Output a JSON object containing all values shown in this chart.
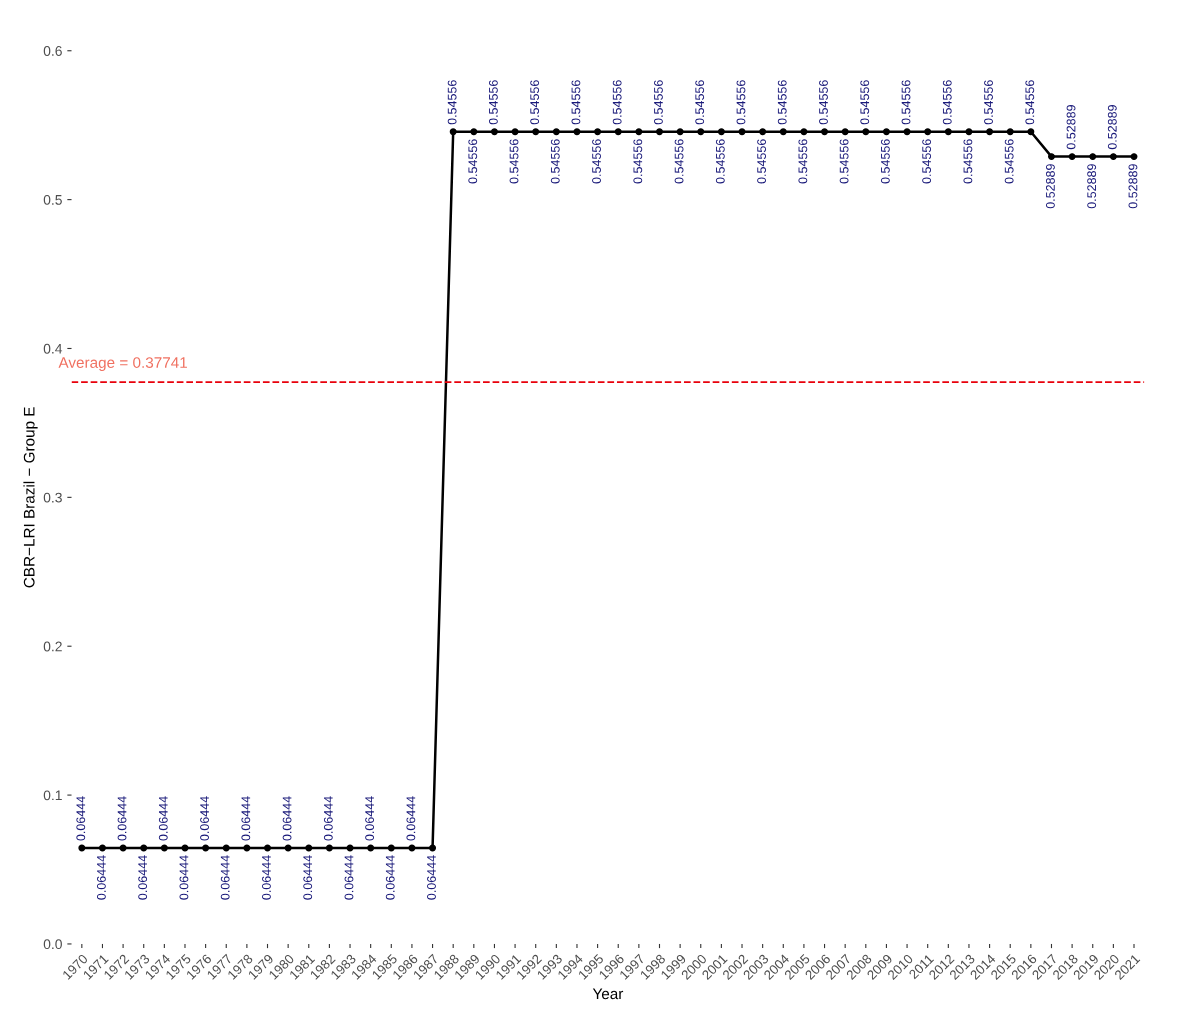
{
  "chart_data": {
    "type": "line",
    "xlabel": "Year",
    "ylabel": "CBR−LRI Brazil − Group E",
    "categories": [
      "1970",
      "1971",
      "1972",
      "1973",
      "1974",
      "1975",
      "1976",
      "1977",
      "1978",
      "1979",
      "1980",
      "1981",
      "1982",
      "1983",
      "1984",
      "1985",
      "1986",
      "1987",
      "1988",
      "1989",
      "1990",
      "1991",
      "1992",
      "1993",
      "1994",
      "1995",
      "1996",
      "1997",
      "1998",
      "1999",
      "2000",
      "2001",
      "2002",
      "2003",
      "2004",
      "2005",
      "2006",
      "2007",
      "2008",
      "2009",
      "2010",
      "2011",
      "2012",
      "2013",
      "2014",
      "2015",
      "2016",
      "2017",
      "2018",
      "2019",
      "2020",
      "2021"
    ],
    "series": [
      {
        "color": "#000000",
        "values": [
          0.06444,
          0.06444,
          0.06444,
          0.06444,
          0.06444,
          0.06444,
          0.06444,
          0.06444,
          0.06444,
          0.06444,
          0.06444,
          0.06444,
          0.06444,
          0.06444,
          0.06444,
          0.06444,
          0.06444,
          0.06444,
          0.54556,
          0.54556,
          0.54556,
          0.54556,
          0.54556,
          0.54556,
          0.54556,
          0.54556,
          0.54556,
          0.54556,
          0.54556,
          0.54556,
          0.54556,
          0.54556,
          0.54556,
          0.54556,
          0.54556,
          0.54556,
          0.54556,
          0.54556,
          0.54556,
          0.54556,
          0.54556,
          0.54556,
          0.54556,
          0.54556,
          0.54556,
          0.54556,
          0.54556,
          0.52889,
          0.52889,
          0.52889,
          0.52889,
          0.52889
        ]
      }
    ],
    "ylim": [
      0,
      0.6
    ],
    "yticks": [
      {
        "value": 0,
        "label": "0.0"
      },
      0.1,
      0.2,
      0.3,
      0.4,
      0.5,
      0.6
    ],
    "ref_lines": [
      {
        "axis": "y",
        "value": 0.37741,
        "label": "Average = 0.37741",
        "color": "#e8000b",
        "line_style": "dashed"
      }
    ],
    "data_labels": true,
    "marker": "circle",
    "line_style": "solid",
    "grid": false,
    "legend": false
  }
}
